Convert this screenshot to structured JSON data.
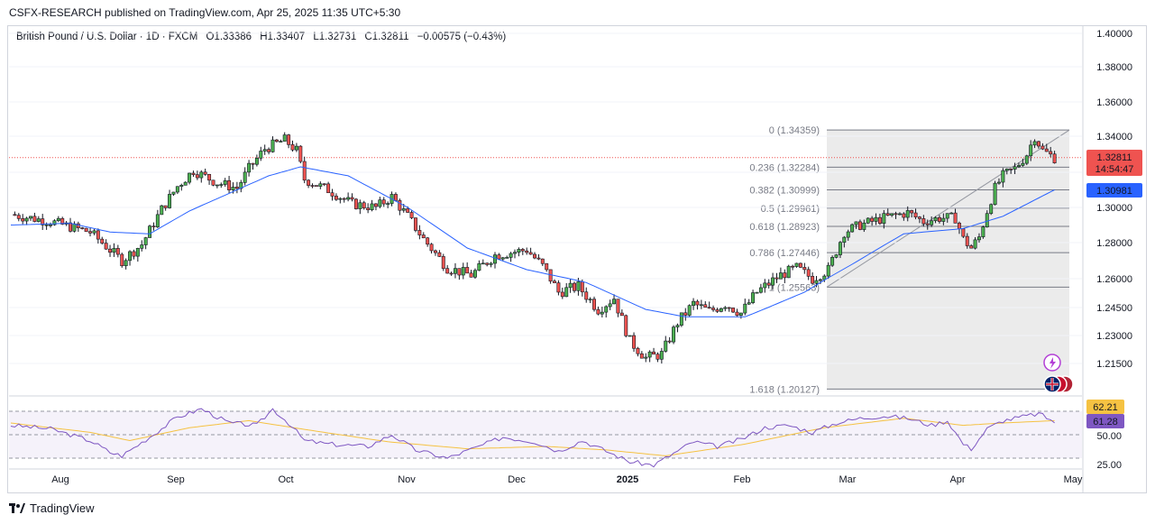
{
  "publisher": "CSFX-RESEARCH published on TradingView.com, Apr 25, 2025 11:35 UTC+5:30",
  "symbol": {
    "name": "British Pound / U.S. Dollar · 1D · FXCM",
    "open": "O1.33386",
    "high": "H1.33407",
    "low": "L1.32731",
    "close": "C1.32811",
    "change": "−0.00575 (−0.43%)"
  },
  "brand": "TradingView",
  "colors": {
    "up": "#26a69a",
    "up_fill": "#4caf50",
    "down": "#ef5350",
    "ma": "#2962ff",
    "rsi": "#7e57c2",
    "rsi_ma": "#f5c242",
    "fib_bg": "#ebebeb"
  },
  "chart_data": [
    {
      "type": "candlestick",
      "title": "British Pound / U.S. Dollar · 1D · FXCM",
      "x_labels": [
        "Aug",
        "Sep",
        "Oct",
        "Nov",
        "Dec",
        "2025",
        "Feb",
        "Mar",
        "Apr",
        "May"
      ],
      "y_ticks": [
        "1.40000",
        "1.38000",
        "1.36000",
        "1.34000",
        "1.32000",
        "1.30000",
        "1.28000",
        "1.26000",
        "1.24500",
        "1.23000",
        "1.21500"
      ],
      "ylim": [
        1.2,
        1.4
      ],
      "last_price": "1.32811",
      "countdown": "14:54:47",
      "ma_value": "1.30981",
      "close_path": [
        [
          0,
          1.296
        ],
        [
          10,
          1.292
        ],
        [
          20,
          1.286
        ],
        [
          25,
          1.276
        ],
        [
          28,
          1.27
        ],
        [
          33,
          1.279
        ],
        [
          38,
          1.299
        ],
        [
          42,
          1.312
        ],
        [
          46,
          1.321
        ],
        [
          52,
          1.314
        ],
        [
          57,
          1.311
        ],
        [
          60,
          1.322
        ],
        [
          64,
          1.333
        ],
        [
          69,
          1.338
        ],
        [
          72,
          1.332
        ],
        [
          74,
          1.316
        ],
        [
          80,
          1.31
        ],
        [
          86,
          1.302
        ],
        [
          92,
          1.3
        ],
        [
          96,
          1.306
        ],
        [
          100,
          1.295
        ],
        [
          104,
          1.282
        ],
        [
          110,
          1.266
        ],
        [
          116,
          1.262
        ],
        [
          122,
          1.273
        ],
        [
          130,
          1.276
        ],
        [
          134,
          1.267
        ],
        [
          138,
          1.253
        ],
        [
          143,
          1.256
        ],
        [
          148,
          1.244
        ],
        [
          152,
          1.25
        ],
        [
          156,
          1.227
        ],
        [
          160,
          1.218
        ],
        [
          164,
          1.22
        ],
        [
          168,
          1.237
        ],
        [
          172,
          1.247
        ],
        [
          176,
          1.243
        ],
        [
          180,
          1.247
        ],
        [
          184,
          1.242
        ],
        [
          188,
          1.253
        ],
        [
          194,
          1.262
        ],
        [
          198,
          1.266
        ],
        [
          202,
          1.26
        ],
        [
          206,
          1.265
        ],
        [
          210,
          1.286
        ],
        [
          214,
          1.29
        ],
        [
          220,
          1.294
        ],
        [
          226,
          1.297
        ],
        [
          230,
          1.292
        ],
        [
          234,
          1.294
        ],
        [
          238,
          1.294
        ],
        [
          240,
          1.282
        ],
        [
          242,
          1.277
        ],
        [
          244,
          1.283
        ],
        [
          246,
          1.298
        ],
        [
          248,
          1.311
        ],
        [
          250,
          1.318
        ],
        [
          253,
          1.322
        ],
        [
          256,
          1.33
        ],
        [
          258,
          1.34
        ],
        [
          260,
          1.332
        ],
        [
          263,
          1.328
        ]
      ],
      "ma_path": [
        [
          0,
          1.29
        ],
        [
          15,
          1.291
        ],
        [
          25,
          1.286
        ],
        [
          35,
          1.285
        ],
        [
          45,
          1.298
        ],
        [
          55,
          1.308
        ],
        [
          65,
          1.318
        ],
        [
          73,
          1.323
        ],
        [
          85,
          1.318
        ],
        [
          100,
          1.3
        ],
        [
          115,
          1.277
        ],
        [
          130,
          1.265
        ],
        [
          145,
          1.258
        ],
        [
          160,
          1.244
        ],
        [
          170,
          1.24
        ],
        [
          185,
          1.24
        ],
        [
          200,
          1.253
        ],
        [
          212,
          1.268
        ],
        [
          225,
          1.285
        ],
        [
          240,
          1.288
        ],
        [
          250,
          1.295
        ],
        [
          263,
          1.31
        ]
      ],
      "fibonacci": [
        {
          "label": "0 (1.34359)",
          "price": 1.34359
        },
        {
          "label": "0.236 (1.32284)",
          "price": 1.32284
        },
        {
          "label": "0.382 (1.30999)",
          "price": 1.30999
        },
        {
          "label": "0.5 (1.29961)",
          "price": 1.29961
        },
        {
          "label": "0.618 (1.28923)",
          "price": 1.28923
        },
        {
          "label": "0.786 (1.27446)",
          "price": 1.27446
        },
        {
          "label": "1 (1.25563)",
          "price": 1.25563
        },
        {
          "label": "1.618 (1.20127)",
          "price": 1.20127
        }
      ]
    },
    {
      "type": "line",
      "title": "",
      "y_ticks": [
        "50.00",
        "25.00"
      ],
      "rsi_value": "61.28",
      "rsi_ma_value": "62.21",
      "ylim": [
        20,
        80
      ],
      "rsi_path": [
        [
          0,
          58
        ],
        [
          10,
          55
        ],
        [
          20,
          45
        ],
        [
          25,
          35
        ],
        [
          28,
          32
        ],
        [
          35,
          48
        ],
        [
          42,
          65
        ],
        [
          48,
          72
        ],
        [
          55,
          60
        ],
        [
          62,
          58
        ],
        [
          66,
          72
        ],
        [
          70,
          60
        ],
        [
          74,
          45
        ],
        [
          80,
          42
        ],
        [
          90,
          40
        ],
        [
          96,
          50
        ],
        [
          102,
          37
        ],
        [
          110,
          30
        ],
        [
          118,
          40
        ],
        [
          124,
          48
        ],
        [
          132,
          44
        ],
        [
          138,
          36
        ],
        [
          144,
          45
        ],
        [
          150,
          36
        ],
        [
          156,
          27
        ],
        [
          162,
          24
        ],
        [
          166,
          32
        ],
        [
          172,
          44
        ],
        [
          178,
          40
        ],
        [
          184,
          46
        ],
        [
          190,
          56
        ],
        [
          196,
          58
        ],
        [
          202,
          52
        ],
        [
          208,
          60
        ],
        [
          214,
          64
        ],
        [
          220,
          66
        ],
        [
          226,
          64
        ],
        [
          232,
          58
        ],
        [
          236,
          62
        ],
        [
          240,
          42
        ],
        [
          242,
          38
        ],
        [
          246,
          55
        ],
        [
          250,
          62
        ],
        [
          256,
          66
        ],
        [
          259,
          68
        ],
        [
          263,
          61
        ]
      ],
      "rsi_ma_path": [
        [
          0,
          60
        ],
        [
          20,
          52
        ],
        [
          30,
          45
        ],
        [
          45,
          56
        ],
        [
          60,
          62
        ],
        [
          75,
          54
        ],
        [
          95,
          44
        ],
        [
          115,
          38
        ],
        [
          135,
          40
        ],
        [
          150,
          37
        ],
        [
          165,
          32
        ],
        [
          185,
          42
        ],
        [
          205,
          56
        ],
        [
          225,
          64
        ],
        [
          240,
          58
        ],
        [
          250,
          60
        ],
        [
          263,
          62
        ]
      ]
    }
  ]
}
